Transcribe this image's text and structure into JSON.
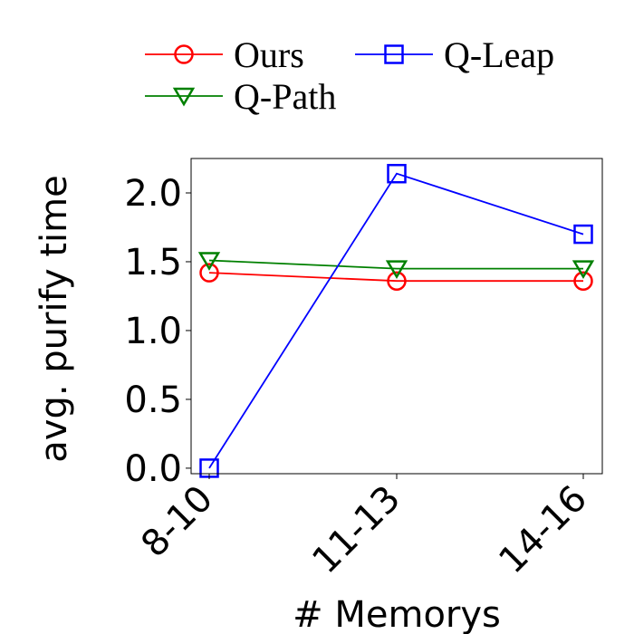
{
  "chart_data": {
    "type": "line",
    "title": "",
    "xlabel": "# Memorys",
    "ylabel": "avg. purify time",
    "categories": [
      "8-10",
      "11-13",
      "14-16"
    ],
    "ylim": [
      -0.04,
      2.25
    ],
    "yticks": [
      "0.0",
      "0.5",
      "1.0",
      "1.5",
      "2.0"
    ],
    "grid": false,
    "legend_position": "top",
    "series": [
      {
        "name": "Ours",
        "values": [
          1.42,
          1.36,
          1.36
        ],
        "color": "#ff0000",
        "marker": "circle"
      },
      {
        "name": "Q-Leap",
        "values": [
          0.0,
          2.14,
          1.7
        ],
        "color": "#0000ff",
        "marker": "square"
      },
      {
        "name": "Q-Path",
        "values": [
          1.51,
          1.45,
          1.45
        ],
        "color": "#008000",
        "marker": "triangle-down"
      }
    ]
  }
}
